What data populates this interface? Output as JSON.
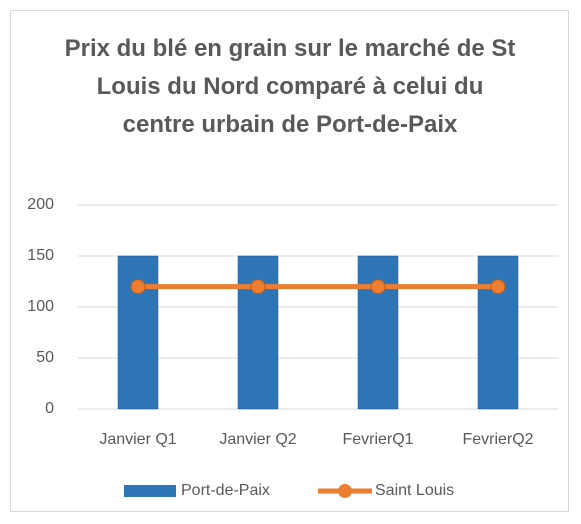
{
  "chart_data": {
    "type": "bar",
    "title": "Prix du blé en grain sur le marché de St Louis du Nord comparé à celui du centre urbain de Port-de-Paix",
    "categories": [
      "Janvier Q1",
      "Janvier Q2",
      "FevrierQ1",
      "FevrierQ2"
    ],
    "series": [
      {
        "name": "Port-de-Paix",
        "type": "bar",
        "color": "#2e75b6",
        "values": [
          150,
          150,
          150,
          150
        ]
      },
      {
        "name": "Saint Louis",
        "type": "line",
        "color": "#ed7d31",
        "values": [
          120,
          120,
          120,
          120
        ]
      }
    ],
    "ylim": [
      0,
      200
    ],
    "yticks": [
      0,
      50,
      100,
      150,
      200
    ],
    "grid": true,
    "legend": "bottom"
  }
}
